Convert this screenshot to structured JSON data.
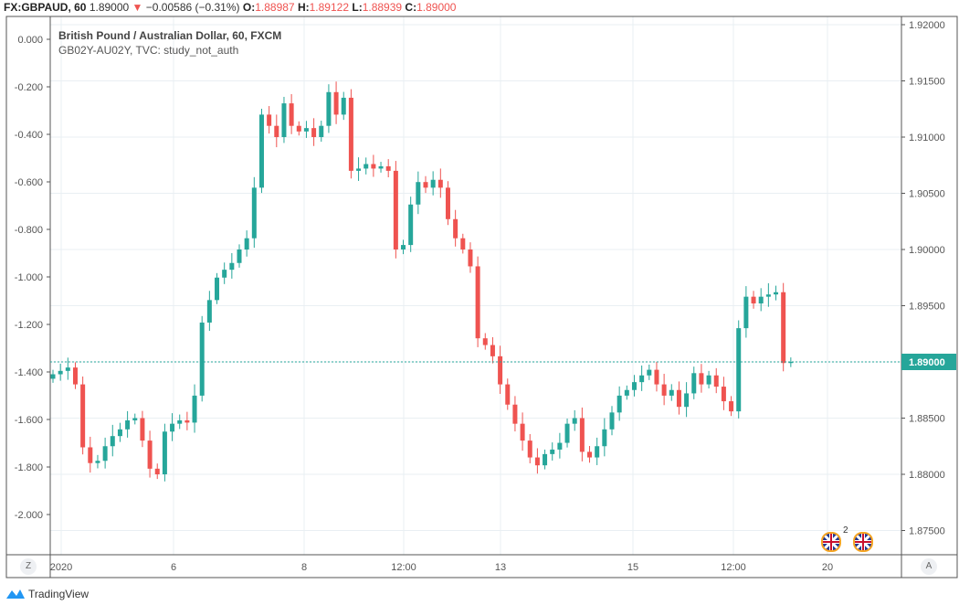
{
  "header": {
    "symbol": "FX:GBPAUD, 60",
    "last": "1.89000",
    "change": "−0.00586 (−0.31%)",
    "o_label": "O:",
    "o": "1.88987",
    "h_label": "H:",
    "h": "1.89122",
    "l_label": "L:",
    "l": "1.88939",
    "c_label": "C:",
    "c": "1.89000"
  },
  "legend": {
    "title": "British Pound / Australian Dollar, 60, FXCM",
    "study": "GB02Y-AU02Y, TVC: study_not_auth"
  },
  "buttons": {
    "left": "Z",
    "right": "A"
  },
  "event_flags": [
    {
      "label": "2"
    },
    {
      "label": ""
    }
  ],
  "branding": "TradingView",
  "colors": {
    "up": "#26a69a",
    "down": "#ef5350",
    "last_price_bg": "#26a69a"
  },
  "chart_data": {
    "type": "candlestick",
    "title": "British Pound / Australian Dollar, 60, FXCM",
    "right_axis": {
      "ticks": [
        "1.92000",
        "1.91500",
        "1.91000",
        "1.90500",
        "1.90000",
        "1.89500",
        "1.89000",
        "1.88500",
        "1.88000",
        "1.87500"
      ],
      "range": [
        1.8738,
        1.9213
      ],
      "last_price_label": "1.89000",
      "last_price": 1.89
    },
    "left_axis": {
      "ticks": [
        "0.000",
        "-0.200",
        "-0.400",
        "-0.600",
        "-0.800",
        "-1.000",
        "-1.200",
        "-1.400",
        "-1.600",
        "-1.800",
        "-2.000"
      ]
    },
    "x_ticks": [
      "2020",
      "6",
      "8",
      "12:00",
      "13",
      "15",
      "12:00",
      "20"
    ],
    "first_open": 1.8885,
    "closes": [
      1.8889,
      1.8892,
      1.8895,
      1.888,
      1.8824,
      1.881,
      1.8812,
      1.8825,
      1.8834,
      1.884,
      1.8848,
      1.885,
      1.883,
      1.8805,
      1.88,
      1.8838,
      1.8845,
      1.8848,
      1.8846,
      1.887,
      1.8935,
      1.8955,
      1.8975,
      1.8982,
      1.8988,
      1.9,
      1.901,
      1.9055,
      1.912,
      1.911,
      1.91,
      1.913,
      1.911,
      1.9105,
      1.9108,
      1.91,
      1.911,
      1.914,
      1.912,
      1.9135,
      1.907,
      1.9072,
      1.9076,
      1.9072,
      1.9074,
      1.907,
      1.9,
      1.9004,
      1.904,
      1.906,
      1.9055,
      1.9062,
      1.9055,
      1.9027,
      1.901,
      1.9,
      1.8985,
      1.8921,
      1.8915,
      1.8905,
      1.888,
      1.8862,
      1.8845,
      1.883,
      1.8815,
      1.8808,
      1.8818,
      1.8822,
      1.8828,
      1.8845,
      1.885,
      1.882,
      1.8815,
      1.8825,
      1.884,
      1.8855,
      1.887,
      1.8875,
      1.8882,
      1.8888,
      1.8893,
      1.888,
      1.887,
      1.8875,
      1.886,
      1.8872,
      1.889,
      1.888,
      1.8888,
      1.8878,
      1.8865,
      1.8856,
      1.893,
      1.8958,
      1.8952,
      1.8958,
      1.896,
      1.8962,
      1.8899,
      1.89
    ]
  }
}
